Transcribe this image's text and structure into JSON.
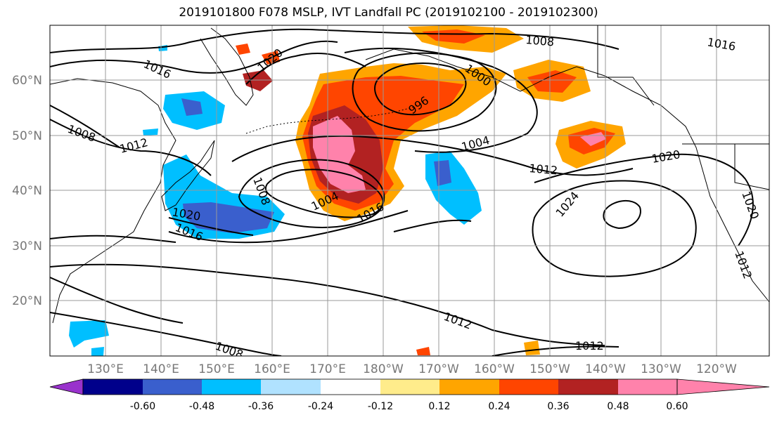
{
  "title": "2019101800 F078 MSLP, IVT Landfall PC (2019102100 - 2019102300)",
  "map": {
    "lon_labels": [
      "130°E",
      "140°E",
      "150°E",
      "160°E",
      "170°E",
      "180°W",
      "170°W",
      "160°W",
      "150°W",
      "140°W",
      "130°W",
      "120°W"
    ],
    "lat_labels": [
      "60°N",
      "50°N",
      "40°N",
      "30°N",
      "20°N"
    ],
    "isobar_labels": [
      "1016",
      "1020",
      "1008",
      "1012",
      "1008",
      "1004",
      "1016",
      "1020",
      "1016",
      "996",
      "1000",
      "1008",
      "1016",
      "1004",
      "1012",
      "1020",
      "1024",
      "1020",
      "1012",
      "1012",
      "1008",
      "1012"
    ]
  },
  "colorbar": {
    "tick_labels": [
      "-0.60",
      "-0.48",
      "-0.36",
      "-0.24",
      "-0.12",
      "0.12",
      "0.24",
      "0.36",
      "0.48",
      "0.60"
    ],
    "colors": [
      "#9932cc",
      "#00008b",
      "#3a5fcd",
      "#00bfff",
      "#b0e2ff",
      "#ffffff",
      "#ffec8b",
      "#ffa500",
      "#ff4500",
      "#b22222",
      "#ff82ab"
    ]
  },
  "legend_colors": {
    "strong_neg": "#3a5fcd",
    "mid_neg": "#00bfff",
    "light_pos": "#ffec8b",
    "mid_pos": "#ffa500",
    "high_pos": "#ff4500",
    "very_high_pos": "#b22222",
    "extreme_pos": "#ff82ab"
  }
}
